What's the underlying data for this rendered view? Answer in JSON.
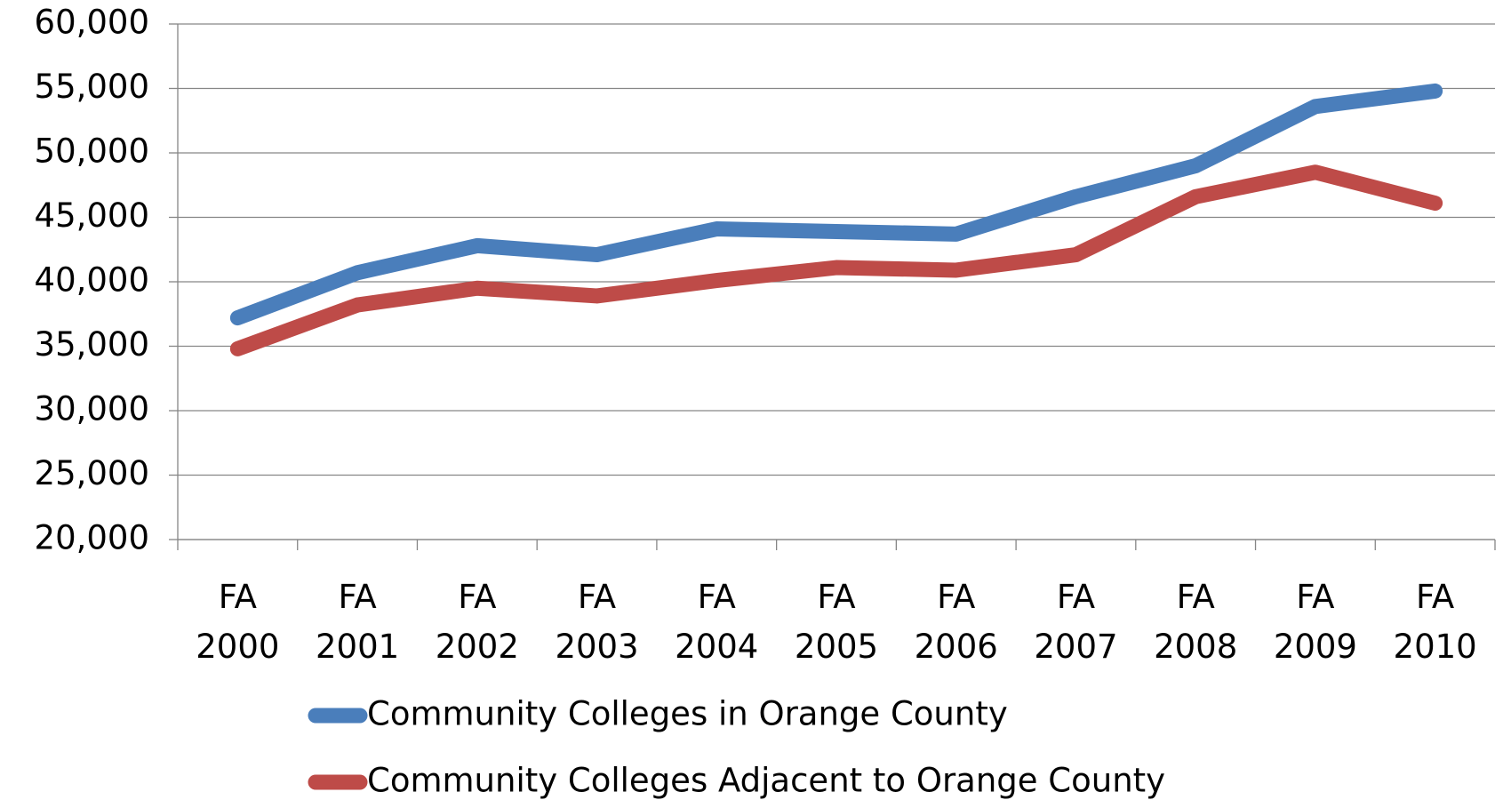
{
  "chart_data": {
    "type": "line",
    "categories": [
      "FA 2000",
      "FA 2001",
      "FA 2002",
      "FA 2003",
      "FA 2004",
      "FA 2005",
      "FA 2006",
      "FA 2007",
      "FA 2008",
      "FA 2009",
      "FA 2010"
    ],
    "series": [
      {
        "name": "Community Colleges in Orange County",
        "color": "#4a7ebb",
        "values": [
          37200,
          40700,
          42800,
          42100,
          44100,
          43900,
          43700,
          46600,
          49000,
          53600,
          54800
        ]
      },
      {
        "name": "Community Colleges Adjacent to Orange County",
        "color": "#be4b48",
        "values": [
          34800,
          38200,
          39500,
          38900,
          40100,
          41100,
          40900,
          42100,
          46600,
          48500,
          46100
        ]
      }
    ],
    "ylim": [
      20000,
      60000
    ],
    "yticks": [
      {
        "value": 20000,
        "label": "20,000"
      },
      {
        "value": 25000,
        "label": "25,000"
      },
      {
        "value": 30000,
        "label": "30,000"
      },
      {
        "value": 35000,
        "label": "35,000"
      },
      {
        "value": 40000,
        "label": "40,000"
      },
      {
        "value": 45000,
        "label": "45,000"
      },
      {
        "value": 50000,
        "label": "50,000"
      },
      {
        "value": 55000,
        "label": "55,000"
      },
      {
        "value": 60000,
        "label": "60,000"
      }
    ],
    "grid": true,
    "legend": "bottom"
  }
}
